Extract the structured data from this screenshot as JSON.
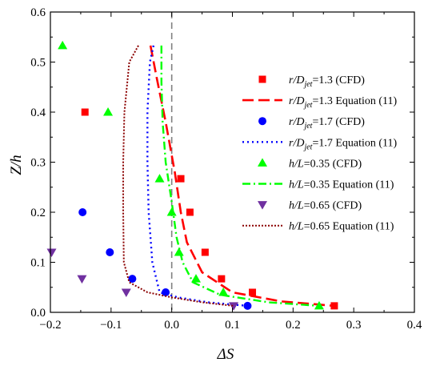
{
  "chart_data": {
    "type": "scatter",
    "xlabel": "ΔS",
    "ylabel": "Z/h",
    "xlim": [
      -0.2,
      0.4
    ],
    "ylim": [
      0.0,
      0.6
    ],
    "xticks": [
      -0.2,
      -0.1,
      0.0,
      0.1,
      0.2,
      0.3,
      0.4
    ],
    "yticks": [
      0.0,
      0.1,
      0.2,
      0.3,
      0.4,
      0.5,
      0.6
    ],
    "xtick_labels": [
      "−0.2",
      "−0.1",
      "0.0",
      "0.1",
      "0.2",
      "0.3",
      "0.4"
    ],
    "ytick_labels": [
      "0.0",
      "0.1",
      "0.2",
      "0.3",
      "0.4",
      "0.5",
      "0.6"
    ],
    "reference_line_x": 0.0,
    "legend_position": "right",
    "series": [
      {
        "name": "r/Djet=1.3 (CFD)",
        "label_parts": [
          "r/D",
          "jet",
          "=1.3 (CFD)"
        ],
        "kind": "marker",
        "marker": "square",
        "color": "#ff0000",
        "x": [
          -0.143,
          0.015,
          0.03,
          0.055,
          0.082,
          0.133,
          0.268
        ],
        "y": [
          0.4,
          0.267,
          0.2,
          0.12,
          0.067,
          0.04,
          0.013
        ]
      },
      {
        "name": "r/Djet=1.3 Equation (11)",
        "label_parts": [
          "r/D",
          "jet",
          "=1.3 Equation (11)"
        ],
        "kind": "line",
        "dash": "long-dash",
        "color": "#ff0000",
        "x": [
          -0.035,
          -0.025,
          -0.01,
          0.005,
          0.015,
          0.025,
          0.05,
          0.1,
          0.18,
          0.268
        ],
        "y": [
          0.533,
          0.47,
          0.38,
          0.28,
          0.2,
          0.14,
          0.08,
          0.04,
          0.022,
          0.013
        ]
      },
      {
        "name": "r/Djet=1.7 (CFD)",
        "label_parts": [
          "r/D",
          "jet",
          "=1.7 (CFD)"
        ],
        "kind": "marker",
        "marker": "circle",
        "color": "#0000ff",
        "x": [
          -0.147,
          -0.102,
          -0.065,
          -0.01,
          0.125
        ],
        "y": [
          0.2,
          0.12,
          0.067,
          0.04,
          0.013
        ]
      },
      {
        "name": "r/Djet=1.7 Equation (11)",
        "label_parts": [
          "r/D",
          "jet",
          "=1.7 Equation (11)"
        ],
        "kind": "line",
        "dash": "dotted",
        "color": "#0000ff",
        "x": [
          -0.03,
          -0.036,
          -0.04,
          -0.04,
          -0.038,
          -0.032,
          -0.02,
          0.01,
          0.06,
          0.125
        ],
        "y": [
          0.533,
          0.5,
          0.4,
          0.3,
          0.2,
          0.1,
          0.04,
          0.03,
          0.02,
          0.013
        ]
      },
      {
        "name": "h/L=0.35 (CFD)",
        "label_parts": [
          "h/L",
          "",
          "=0.35 (CFD)"
        ],
        "kind": "marker",
        "marker": "triangle-up",
        "color": "#00ff00",
        "x": [
          -0.18,
          -0.105,
          -0.02,
          0.0,
          0.012,
          0.04,
          0.085,
          0.243
        ],
        "y": [
          0.533,
          0.4,
          0.267,
          0.2,
          0.12,
          0.067,
          0.04,
          0.013
        ]
      },
      {
        "name": "h/L=0.35 Equation (11)",
        "label_parts": [
          "h/L",
          "",
          "=0.35 Equation (11)"
        ],
        "kind": "line",
        "dash": "dash-dot",
        "color": "#00ff00",
        "x": [
          -0.017,
          -0.017,
          -0.015,
          -0.01,
          0.0,
          0.008,
          0.018,
          0.035,
          0.08,
          0.16,
          0.243
        ],
        "y": [
          0.533,
          0.46,
          0.38,
          0.3,
          0.22,
          0.15,
          0.1,
          0.06,
          0.035,
          0.02,
          0.013
        ]
      },
      {
        "name": "h/L=0.65 (CFD)",
        "label_parts": [
          "h/L",
          "",
          "=0.65 (CFD)"
        ],
        "kind": "marker",
        "marker": "triangle-down",
        "color": "#7030a0",
        "x": [
          -0.198,
          -0.148,
          -0.075,
          0.102
        ],
        "y": [
          0.12,
          0.067,
          0.04,
          0.013
        ]
      },
      {
        "name": "h/L=0.65 Equation (11)",
        "label_parts": [
          "h/L",
          "",
          "=0.65 Equation (11)"
        ],
        "kind": "line",
        "dash": "dotted-fine",
        "color": "#8b0000",
        "x": [
          -0.055,
          -0.07,
          -0.078,
          -0.08,
          -0.08,
          -0.079,
          -0.07,
          -0.04,
          0.0,
          0.05,
          0.102
        ],
        "y": [
          0.533,
          0.5,
          0.4,
          0.3,
          0.2,
          0.1,
          0.06,
          0.04,
          0.03,
          0.02,
          0.013
        ]
      }
    ]
  }
}
